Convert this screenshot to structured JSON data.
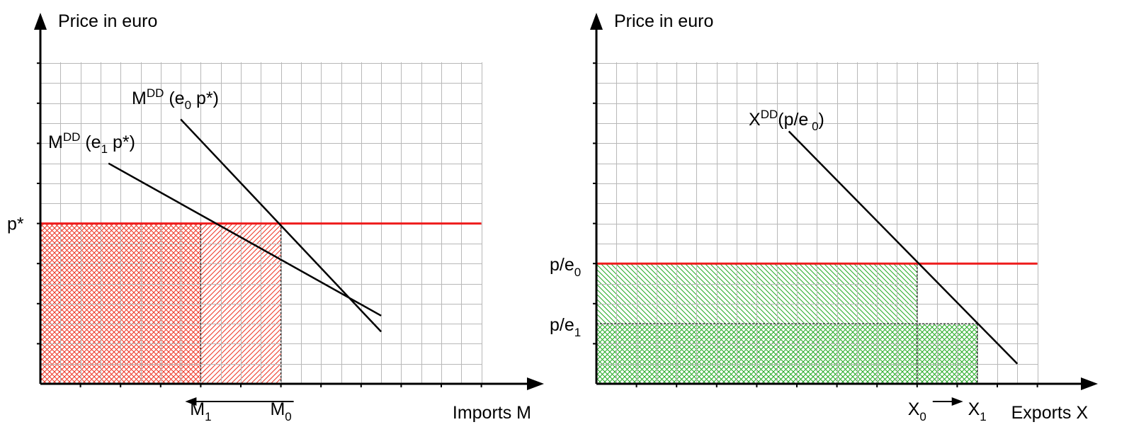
{
  "colors": {
    "grid": "#b8b8b8",
    "axis": "#000000",
    "price_line": "#ee1c1c",
    "red_hatch": "#ee3322",
    "green_hatch": "#22aa22",
    "demand_line": "#000000"
  },
  "chart_data": [
    {
      "type": "line",
      "title": "",
      "ylabel": "Price in euro",
      "xlabel": "Imports M",
      "xlim": [
        0,
        11
      ],
      "ylim": [
        0,
        8
      ],
      "grid": true,
      "price_tick_label": "p*",
      "price_level": 4,
      "series": [
        {
          "name": "M^DD (e0 p*)",
          "label": {
            "main": "M",
            "sup": "DD",
            "open": " (e",
            "sub": "0",
            "close": " p*)"
          },
          "points": [
            [
              3.5,
              6.6
            ],
            [
              8.5,
              1.3
            ]
          ]
        },
        {
          "name": "M^DD (e1 p*)",
          "label": {
            "main": "M",
            "sup": "DD",
            "open": " (e",
            "sub": "1",
            "close": " p*)"
          },
          "points": [
            [
              1.7,
              5.5
            ],
            [
              8.5,
              1.7
            ]
          ]
        }
      ],
      "horizontal_line": {
        "y": 4,
        "x_range": [
          0,
          11
        ]
      },
      "shaded_regions": [
        {
          "pattern": "cross-hatch",
          "x_range": [
            0,
            4
          ],
          "y_range": [
            0,
            4
          ]
        },
        {
          "pattern": "hatch",
          "x_range": [
            4,
            6
          ],
          "y_range": [
            0,
            4
          ]
        }
      ],
      "x_markers": [
        {
          "label_main": "M",
          "label_sub": "1",
          "x": 4
        },
        {
          "label_main": "M",
          "label_sub": "0",
          "x": 6
        }
      ],
      "arrow": {
        "from_x": 6,
        "to_x": 4,
        "label": "M0 → M1"
      }
    },
    {
      "type": "line",
      "title": "",
      "ylabel": "Price in euro",
      "xlabel": "Exports X",
      "xlim": [
        0,
        11
      ],
      "ylim": [
        0,
        8
      ],
      "grid": true,
      "price_ticks": [
        {
          "label_main": "p/e",
          "label_sub": "0",
          "y": 3
        },
        {
          "label_main": "p/e",
          "label_sub": "1",
          "y": 1.5
        }
      ],
      "series": [
        {
          "name": "X^DD(p/e0)",
          "label": {
            "main": "X",
            "sup": "DD",
            "open": "(p/e",
            "sub": " 0",
            "close": ")"
          },
          "points": [
            [
              4.8,
              6.3
            ],
            [
              10.5,
              0.5
            ]
          ]
        }
      ],
      "horizontal_line": {
        "y": 3,
        "x_range": [
          0,
          11
        ]
      },
      "shaded_regions": [
        {
          "pattern": "hatch",
          "x_range": [
            0,
            8
          ],
          "y_range": [
            1.5,
            3
          ]
        },
        {
          "pattern": "cross-hatch",
          "x_range": [
            0,
            9.5
          ],
          "y_range": [
            0,
            1.5
          ]
        }
      ],
      "x_markers": [
        {
          "label_main": "X",
          "label_sub": "0",
          "x": 8
        },
        {
          "label_main": "X",
          "label_sub": "1",
          "x": 9.5
        }
      ],
      "arrow": {
        "from_x": 8,
        "to_x": 9.5,
        "label": "X0 → X1"
      }
    }
  ]
}
